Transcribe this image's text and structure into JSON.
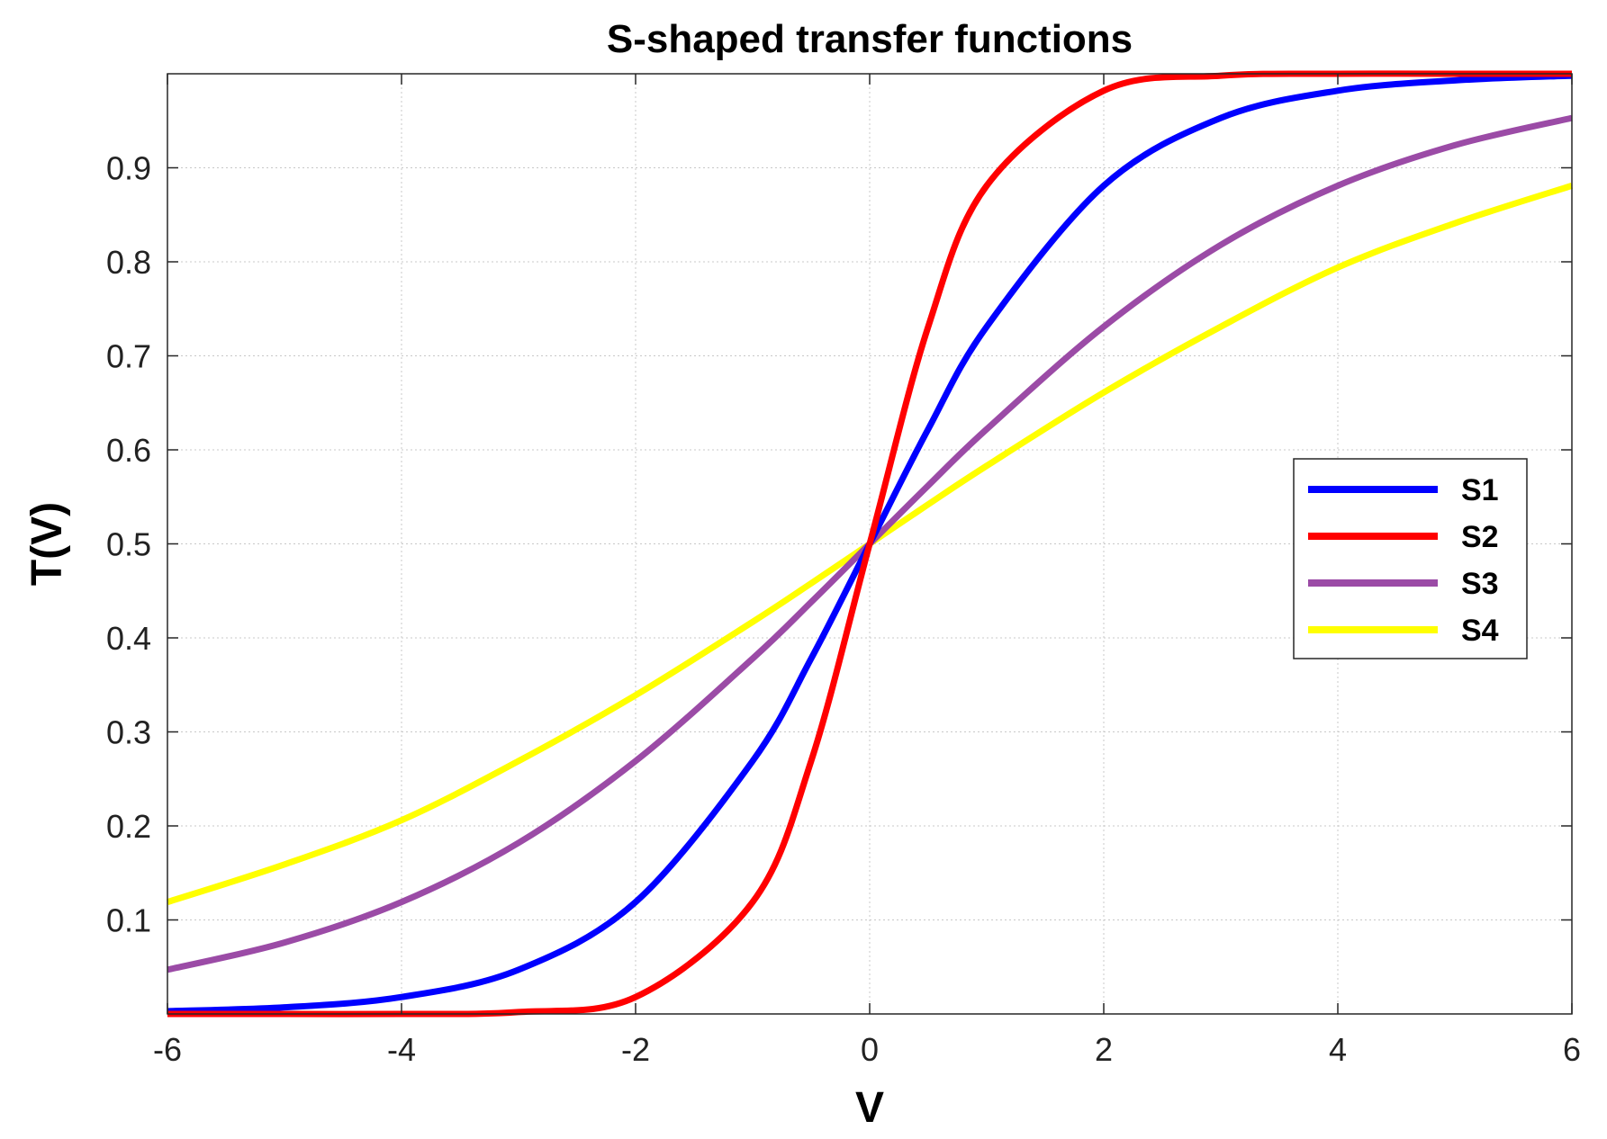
{
  "chart_data": {
    "type": "line",
    "title": "S-shaped transfer functions",
    "xlabel": "V",
    "ylabel": "T(V)",
    "xlim": [
      -6,
      6
    ],
    "ylim": [
      0,
      1
    ],
    "xticks": [
      -6,
      -4,
      -2,
      0,
      2,
      4,
      6
    ],
    "xtick_labels": [
      "-6",
      "-4",
      "-2",
      "0",
      "2",
      "4",
      "6"
    ],
    "yticks": [
      0.1,
      0.2,
      0.3,
      0.4,
      0.5,
      0.6,
      0.7,
      0.8,
      0.9
    ],
    "ytick_labels": [
      "0.1",
      "0.2",
      "0.3",
      "0.4",
      "0.5",
      "0.6",
      "0.7",
      "0.8",
      "0.9"
    ],
    "grid": true,
    "legend_position": "right",
    "x": [
      -6,
      -5,
      -4,
      -3,
      -2,
      -1,
      -0.5,
      0,
      0.5,
      1,
      2,
      3,
      4,
      5,
      6
    ],
    "series": [
      {
        "name": "S1",
        "color": "#0000ff",
        "values": [
          0.003,
          0.007,
          0.018,
          0.047,
          0.119,
          0.269,
          0.378,
          0.5,
          0.622,
          0.731,
          0.881,
          0.953,
          0.982,
          0.993,
          0.998
        ]
      },
      {
        "name": "S2",
        "color": "#ff0000",
        "values": [
          0.0,
          0.0,
          0.0,
          0.002,
          0.018,
          0.119,
          0.269,
          0.5,
          0.731,
          0.881,
          0.982,
          0.998,
          1.0,
          1.0,
          1.0
        ]
      },
      {
        "name": "S3",
        "color": "#9b4ba6",
        "values": [
          0.047,
          0.076,
          0.119,
          0.182,
          0.269,
          0.378,
          0.438,
          0.5,
          0.562,
          0.622,
          0.731,
          0.818,
          0.881,
          0.924,
          0.953
        ]
      },
      {
        "name": "S4",
        "color": "#ffff00",
        "values": [
          0.119,
          0.159,
          0.206,
          0.269,
          0.339,
          0.417,
          0.458,
          0.5,
          0.542,
          0.583,
          0.661,
          0.731,
          0.794,
          0.841,
          0.881
        ]
      }
    ]
  }
}
